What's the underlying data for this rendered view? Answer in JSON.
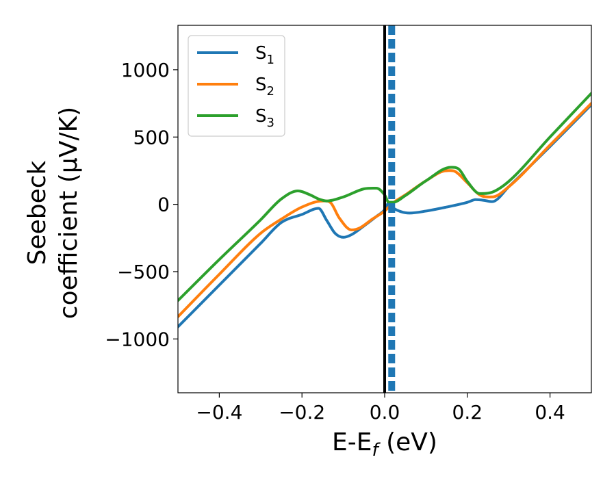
{
  "chart_data": {
    "type": "line",
    "xlabel": {
      "base": "E-E",
      "sub": "f",
      "tail": " (eV)"
    },
    "ylabel": {
      "line1": "Seebeck",
      "line2": "coefficient  (μV/K)"
    },
    "xlim": [
      -0.5,
      0.5
    ],
    "ylim": [
      -1400,
      1330
    ],
    "xticks": [
      {
        "value": -0.4,
        "label": "−0.4"
      },
      {
        "value": -0.2,
        "label": "−0.2"
      },
      {
        "value": 0.0,
        "label": "0.0"
      },
      {
        "value": 0.2,
        "label": "0.2"
      },
      {
        "value": 0.4,
        "label": "0.4"
      }
    ],
    "yticks": [
      {
        "value": 1000,
        "label": "1000"
      },
      {
        "value": 500,
        "label": "500"
      },
      {
        "value": 0,
        "label": "0"
      },
      {
        "value": -500,
        "label": "−500"
      },
      {
        "value": -1000,
        "label": "−1000"
      }
    ],
    "vlines": [
      {
        "x": 0.0,
        "color": "#000000",
        "style": "solid",
        "name": "fermi-level-line"
      },
      {
        "x": 0.017,
        "color": "#1f77b4",
        "style": "dashed",
        "name": "dashed-reference-line"
      }
    ],
    "legend": {
      "position": "top-left"
    },
    "series": [
      {
        "name": "S",
        "sub": "1",
        "color": "#1f77b4",
        "x": [
          -0.5,
          -0.4,
          -0.3,
          -0.25,
          -0.2,
          -0.16,
          -0.14,
          -0.12,
          -0.1,
          -0.08,
          -0.05,
          -0.02,
          0.0,
          0.01,
          0.02,
          0.04,
          0.06,
          0.1,
          0.15,
          0.2,
          0.22,
          0.24,
          0.26,
          0.3,
          0.4,
          0.5
        ],
        "values": [
          -910,
          -600,
          -290,
          -135,
          -75,
          -30,
          -120,
          -215,
          -245,
          -225,
          -160,
          -90,
          -40,
          10,
          -25,
          -55,
          -65,
          -50,
          -20,
          15,
          35,
          30,
          20,
          130,
          430,
          740
        ]
      },
      {
        "name": "S",
        "sub": "2",
        "color": "#ff7f0e",
        "x": [
          -0.5,
          -0.4,
          -0.3,
          -0.25,
          -0.2,
          -0.15,
          -0.13,
          -0.11,
          -0.08,
          -0.06,
          -0.03,
          0.0,
          0.02,
          0.05,
          0.1,
          0.15,
          0.17,
          0.2,
          0.23,
          0.26,
          0.3,
          0.4,
          0.5
        ],
        "values": [
          -835,
          -520,
          -215,
          -110,
          -20,
          25,
          10,
          -100,
          -190,
          -175,
          -110,
          -50,
          10,
          70,
          175,
          250,
          245,
          160,
          70,
          55,
          130,
          440,
          750
        ]
      },
      {
        "name": "S",
        "sub": "3",
        "color": "#2ca02c",
        "x": [
          -0.5,
          -0.4,
          -0.3,
          -0.25,
          -0.21,
          -0.18,
          -0.16,
          -0.14,
          -0.1,
          -0.05,
          -0.02,
          0.0,
          0.01,
          0.02,
          0.05,
          0.1,
          0.16,
          0.18,
          0.2,
          0.23,
          0.26,
          0.3,
          0.4,
          0.5
        ],
        "values": [
          -715,
          -410,
          -115,
          40,
          100,
          70,
          40,
          25,
          55,
          115,
          120,
          70,
          15,
          15,
          65,
          175,
          275,
          260,
          170,
          80,
          90,
          170,
          500,
          825
        ]
      }
    ]
  }
}
